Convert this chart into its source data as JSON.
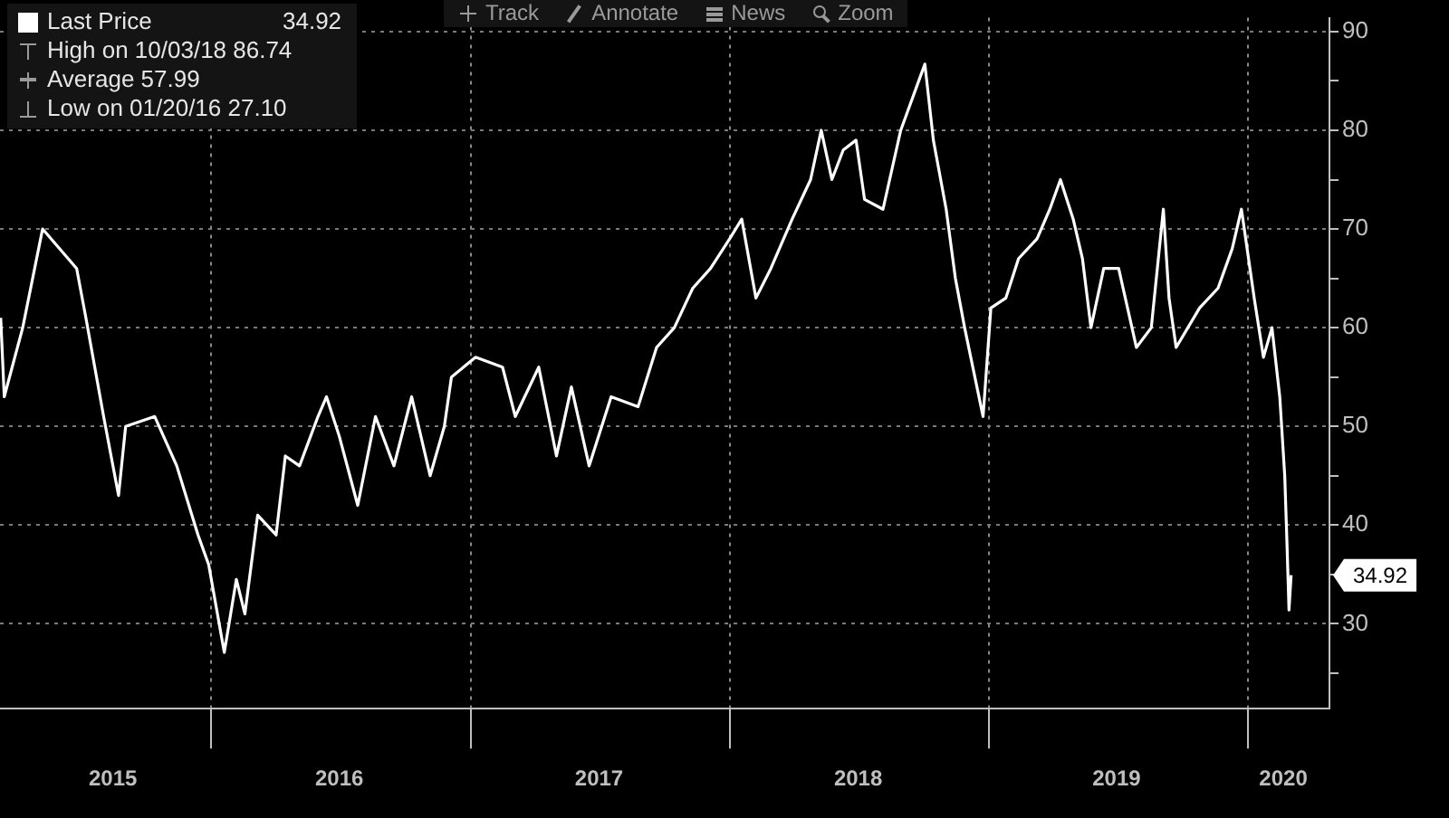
{
  "chart_data": {
    "type": "line",
    "legend": "top left",
    "grid": true,
    "marker": "none",
    "line_style": "solid",
    "xlim": [
      "2015-03-10",
      "2020-04-25"
    ],
    "xticks": [
      {
        "value": "2015-08-16",
        "label": "2015"
      },
      {
        "value": "2016-01-01",
        "label": null
      },
      {
        "value": "2016-06-30",
        "label": "2016"
      },
      {
        "value": "2017-01-01",
        "label": null
      },
      {
        "value": "2017-07-01",
        "label": "2017"
      },
      {
        "value": "2018-01-01",
        "label": null
      },
      {
        "value": "2018-07-01",
        "label": "2018"
      },
      {
        "value": "2019-01-01",
        "label": null
      },
      {
        "value": "2019-06-30",
        "label": "2019"
      },
      {
        "value": "2020-01-01",
        "label": null
      },
      {
        "value": "2020-02-20",
        "label": "2020"
      }
    ],
    "ylim": [
      21.4,
      91.4
    ],
    "yticks": [
      {
        "value": 25,
        "label": null
      },
      30,
      {
        "value": 35,
        "label": null
      },
      40,
      {
        "value": 45,
        "label": null
      },
      50,
      {
        "value": 55,
        "label": null
      },
      60,
      {
        "value": 65,
        "label": null
      },
      70,
      {
        "value": 75,
        "label": null
      },
      80,
      {
        "value": 85,
        "label": null
      },
      90
    ],
    "series": [
      {
        "name": "Last Price",
        "color": "#ffffff",
        "x": [
          "2015-03-11",
          "2015-03-16",
          "2015-04-11",
          "2015-05-09",
          "2015-06-26",
          "2015-07-09",
          "2015-08-03",
          "2015-08-24",
          "2015-09-03",
          "2015-10-14",
          "2015-11-14",
          "2015-12-14",
          "2015-12-29",
          "2016-01-20",
          "2016-02-06",
          "2016-02-18",
          "2016-03-07",
          "2016-04-02",
          "2016-04-15",
          "2016-05-05",
          "2016-05-31",
          "2016-06-12",
          "2016-06-30",
          "2016-07-26",
          "2016-08-20",
          "2016-09-15",
          "2016-10-10",
          "2016-11-05",
          "2016-11-25",
          "2016-12-05",
          "2017-01-08",
          "2017-02-15",
          "2017-03-05",
          "2017-04-07",
          "2017-05-02",
          "2017-05-23",
          "2017-06-17",
          "2017-07-18",
          "2017-08-25",
          "2017-09-20",
          "2017-10-15",
          "2017-11-10",
          "2017-12-05",
          "2018-01-01",
          "2018-01-18",
          "2018-02-07",
          "2018-02-28",
          "2018-03-30",
          "2018-04-25",
          "2018-05-10",
          "2018-05-25",
          "2018-06-10",
          "2018-06-28",
          "2018-07-10",
          "2018-08-05",
          "2018-08-30",
          "2018-10-03",
          "2018-10-15",
          "2018-11-02",
          "2018-11-15",
          "2018-11-28",
          "2018-12-24",
          "2019-01-04",
          "2019-01-25",
          "2019-02-12",
          "2019-03-10",
          "2019-03-28",
          "2019-04-12",
          "2019-04-30",
          "2019-05-13",
          "2019-05-25",
          "2019-06-12",
          "2019-07-03",
          "2019-07-28",
          "2019-08-18",
          "2019-09-04",
          "2019-09-12",
          "2019-09-22",
          "2019-10-25",
          "2019-11-20",
          "2019-12-10",
          "2019-12-23",
          "2020-01-10",
          "2020-01-23",
          "2020-02-04",
          "2020-02-15",
          "2020-02-22",
          "2020-02-25",
          "2020-02-28",
          "2020-03-02"
        ],
        "values": [
          61,
          53,
          60,
          70,
          66,
          61,
          51,
          43,
          50,
          51,
          46,
          39,
          36,
          27.1,
          34.5,
          31,
          41,
          39,
          47,
          46,
          51,
          53,
          49,
          42,
          51,
          46,
          53,
          45,
          50,
          55,
          57,
          56,
          51,
          56,
          47,
          54,
          46,
          53,
          52,
          58,
          60,
          64,
          66,
          69,
          71,
          63,
          66,
          71,
          75,
          80,
          75,
          78,
          79,
          73,
          72,
          80,
          86.7,
          79,
          72,
          65,
          60,
          51,
          62,
          63,
          67,
          69,
          72,
          75,
          71,
          67,
          60,
          66,
          66,
          58,
          60,
          72,
          63,
          58,
          62,
          64,
          68,
          72,
          63,
          57,
          60,
          53,
          45,
          38.5,
          31.4,
          34.92
        ]
      }
    ],
    "annotations": [
      "34.92",
      "High on 10/03/18 86.74",
      "Average 57.99",
      "Low on 01/20/16 27.10",
      "Track",
      "Annotate",
      "News",
      "Zoom"
    ]
  }
}
